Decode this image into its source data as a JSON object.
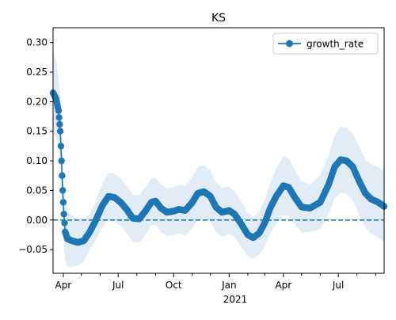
{
  "chart_data": {
    "type": "line",
    "title": "KS",
    "xlabel": "",
    "ylabel": "",
    "x_date_range": [
      "2020-03-15",
      "2021-09-15"
    ],
    "ylim": [
      -0.09,
      0.325
    ],
    "y_ticks": [
      -0.05,
      0.0,
      0.05,
      0.1,
      0.15,
      0.2,
      0.25,
      0.3
    ],
    "y_tick_labels": [
      "−0.05",
      "0.00",
      "0.05",
      "0.10",
      "0.15",
      "0.20",
      "0.25",
      "0.30"
    ],
    "x_ticks": [
      {
        "date": "2020-04-01",
        "label": "Apr"
      },
      {
        "date": "2020-07-01",
        "label": "Jul"
      },
      {
        "date": "2020-10-01",
        "label": "Oct"
      },
      {
        "date": "2021-01-01",
        "label": "Jan"
      },
      {
        "date": "2021-04-01",
        "label": "Apr"
      },
      {
        "date": "2021-07-01",
        "label": "Jul"
      }
    ],
    "x_minor_ticks": [
      "2020-05-01",
      "2020-06-01",
      "2020-08-01",
      "2020-09-01",
      "2020-11-01",
      "2020-12-01",
      "2021-02-01",
      "2021-03-01",
      "2021-05-01",
      "2021-06-01",
      "2021-08-01",
      "2021-09-01"
    ],
    "x_year_label": "2021",
    "reference_line": {
      "y": 0.0,
      "style": "dashed"
    },
    "legend": {
      "position": "upper right",
      "entries": [
        "growth_rate"
      ]
    },
    "colors": {
      "series": "#1f77b4",
      "band": "#dce9f5"
    },
    "series": [
      {
        "name": "growth_rate",
        "points": [
          [
            "2020-03-15",
            0.215
          ],
          [
            "2020-03-20",
            0.205
          ],
          [
            "2020-03-24",
            0.185
          ],
          [
            "2020-03-27",
            0.15
          ],
          [
            "2020-03-29",
            0.1
          ],
          [
            "2020-03-31",
            0.05
          ],
          [
            "2020-04-02",
            0.01
          ],
          [
            "2020-04-04",
            -0.02
          ],
          [
            "2020-04-08",
            -0.032
          ],
          [
            "2020-04-15",
            -0.035
          ],
          [
            "2020-04-25",
            -0.038
          ],
          [
            "2020-05-05",
            -0.035
          ],
          [
            "2020-05-15",
            -0.02
          ],
          [
            "2020-05-25",
            0.0
          ],
          [
            "2020-06-05",
            0.025
          ],
          [
            "2020-06-15",
            0.04
          ],
          [
            "2020-06-25",
            0.038
          ],
          [
            "2020-07-05",
            0.03
          ],
          [
            "2020-07-15",
            0.018
          ],
          [
            "2020-07-25",
            0.003
          ],
          [
            "2020-08-05",
            0.002
          ],
          [
            "2020-08-15",
            0.015
          ],
          [
            "2020-08-25",
            0.03
          ],
          [
            "2020-09-01",
            0.032
          ],
          [
            "2020-09-10",
            0.02
          ],
          [
            "2020-09-20",
            0.013
          ],
          [
            "2020-10-01",
            0.015
          ],
          [
            "2020-10-10",
            0.018
          ],
          [
            "2020-10-20",
            0.016
          ],
          [
            "2020-11-01",
            0.03
          ],
          [
            "2020-11-10",
            0.045
          ],
          [
            "2020-11-20",
            0.048
          ],
          [
            "2020-12-01",
            0.04
          ],
          [
            "2020-12-10",
            0.022
          ],
          [
            "2020-12-20",
            0.013
          ],
          [
            "2021-01-01",
            0.016
          ],
          [
            "2021-01-10",
            0.01
          ],
          [
            "2021-01-20",
            -0.005
          ],
          [
            "2021-02-01",
            -0.025
          ],
          [
            "2021-02-10",
            -0.03
          ],
          [
            "2021-02-20",
            -0.022
          ],
          [
            "2021-03-01",
            -0.005
          ],
          [
            "2021-03-10",
            0.02
          ],
          [
            "2021-03-20",
            0.04
          ],
          [
            "2021-04-01",
            0.058
          ],
          [
            "2021-04-10",
            0.055
          ],
          [
            "2021-04-20",
            0.038
          ],
          [
            "2021-05-01",
            0.022
          ],
          [
            "2021-05-15",
            0.02
          ],
          [
            "2021-06-01",
            0.03
          ],
          [
            "2021-06-15",
            0.06
          ],
          [
            "2021-06-25",
            0.09
          ],
          [
            "2021-07-05",
            0.102
          ],
          [
            "2021-07-15",
            0.1
          ],
          [
            "2021-07-25",
            0.09
          ],
          [
            "2021-08-05",
            0.065
          ],
          [
            "2021-08-15",
            0.045
          ],
          [
            "2021-08-25",
            0.035
          ],
          [
            "2021-09-05",
            0.03
          ],
          [
            "2021-09-15",
            0.023
          ]
        ],
        "band_halfwidth": [
          [
            "2020-03-15",
            0.07
          ],
          [
            "2020-04-01",
            0.05
          ],
          [
            "2020-05-15",
            0.03
          ],
          [
            "2020-06-15",
            0.04
          ],
          [
            "2020-08-01",
            0.04
          ],
          [
            "2020-10-01",
            0.04
          ],
          [
            "2020-11-15",
            0.045
          ],
          [
            "2021-01-01",
            0.04
          ],
          [
            "2021-02-15",
            0.035
          ],
          [
            "2021-04-01",
            0.05
          ],
          [
            "2021-05-15",
            0.04
          ],
          [
            "2021-07-01",
            0.055
          ],
          [
            "2021-09-15",
            0.06
          ]
        ]
      }
    ]
  }
}
